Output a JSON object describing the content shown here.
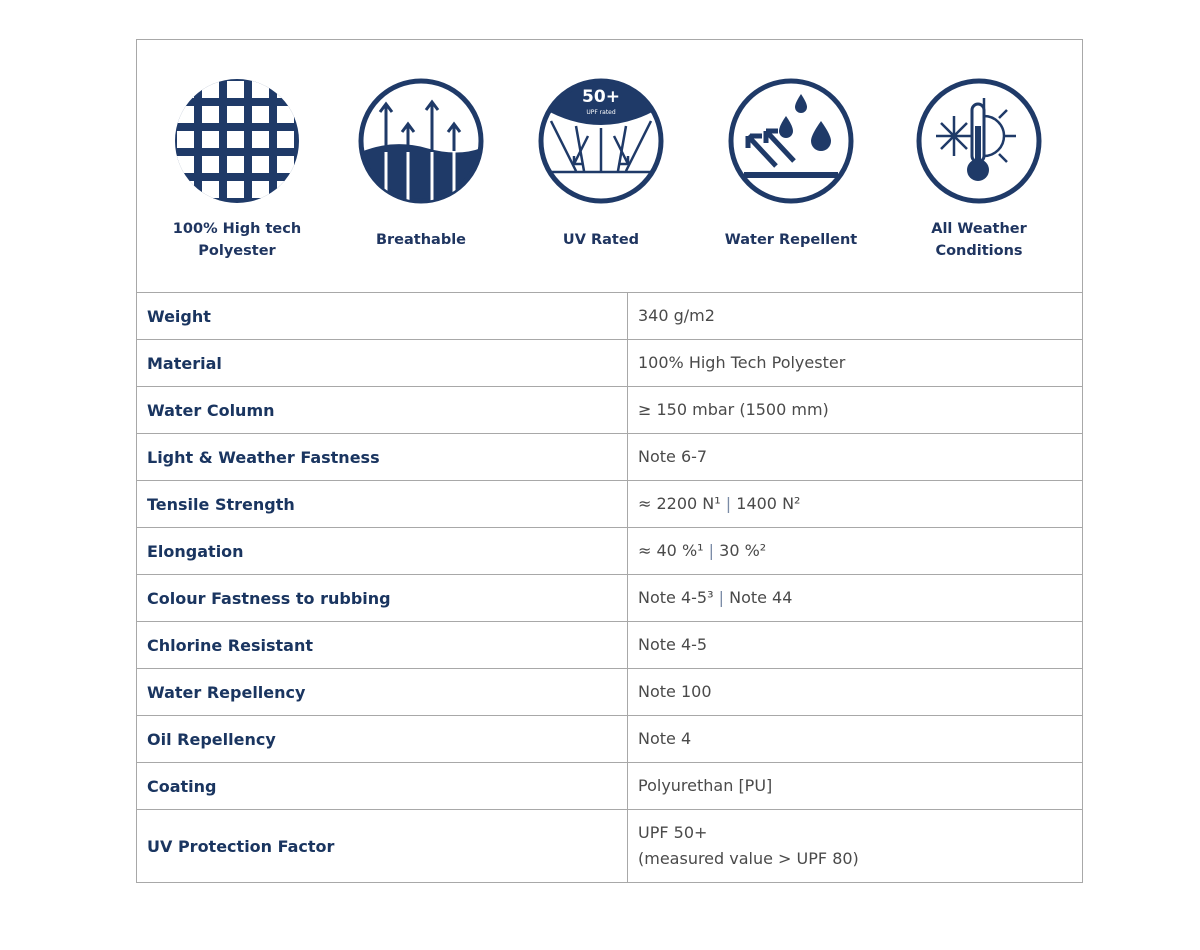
{
  "colors": {
    "navy": "#1f3a68",
    "key_text": "#1a3560",
    "value_text": "#4a4a4a"
  },
  "features": [
    {
      "icon": "grid-fabric-icon",
      "label_lines": [
        "100% High tech",
        "Polyester"
      ]
    },
    {
      "icon": "breathable-arrows-icon",
      "label_lines": [
        "Breathable"
      ]
    },
    {
      "icon": "uv-rated-icon",
      "label_lines": [
        "UV Rated"
      ],
      "badge": "50+",
      "badge_sub": "UPF rated"
    },
    {
      "icon": "water-repellent-icon",
      "label_lines": [
        "Water Repellent"
      ]
    },
    {
      "icon": "all-weather-icon",
      "label_lines": [
        "All Weather",
        "Conditions"
      ]
    }
  ],
  "specs": [
    {
      "key": "Weight",
      "value": "340 g/m2"
    },
    {
      "key": "Material",
      "value": "100% High Tech Polyester"
    },
    {
      "key": "Water Column",
      "value": "≥ 150 mbar (1500 mm)"
    },
    {
      "key": "Light & Weather Fastness",
      "value": "Note 6-7"
    },
    {
      "key": "Tensile Strength",
      "value_a": "≈ 2200 N¹",
      "sep": "|",
      "value_b": "1400 N²"
    },
    {
      "key": "Elongation",
      "value_a": "≈ 40 %¹",
      "sep": "|",
      "value_b": "30 %²"
    },
    {
      "key": "Colour Fastness to rubbing",
      "value_a": "Note 4-5³",
      "sep": "|",
      "value_b": "Note 44"
    },
    {
      "key": "Chlorine Resistant",
      "value": "Note 4-5"
    },
    {
      "key": "Water Repellency",
      "value": "Note 100"
    },
    {
      "key": "Oil Repellency",
      "value": "Note 4"
    },
    {
      "key": "Coating",
      "value": "Polyurethan [PU]"
    },
    {
      "key": "UV Protection Factor",
      "value": "UPF 50+",
      "value_line2": "(measured value > UPF 80)"
    }
  ]
}
